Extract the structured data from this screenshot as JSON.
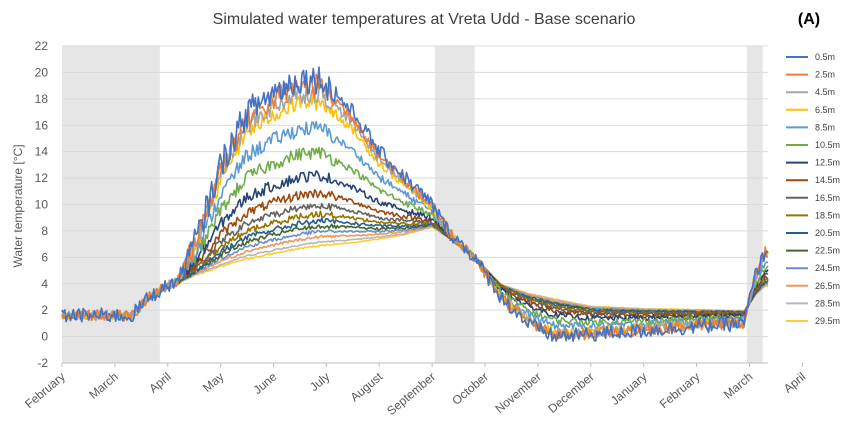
{
  "chart_data": {
    "type": "line",
    "title": "Simulated water temperatures at Vreta Udd - Base scenario",
    "panel_label": "(A)",
    "ylabel": "Water temperature [°C]",
    "xlabel": "",
    "ylim": [
      -2,
      22
    ],
    "yticks": [
      "-2",
      "0",
      "2",
      "4",
      "6",
      "8",
      "10",
      "12",
      "14",
      "16",
      "18",
      "20",
      "22"
    ],
    "x_months": [
      "February",
      "March",
      "April",
      "May",
      "June",
      "July",
      "August",
      "September",
      "October",
      "November",
      "December",
      "January",
      "February",
      "March",
      "April"
    ],
    "x_range_months": [
      0,
      13.35
    ],
    "shaded_periods": [
      [
        0,
        1.85
      ],
      [
        7.05,
        7.8
      ],
      [
        12.95,
        13.25
      ]
    ],
    "grid": "horizontal",
    "legend_position": "right",
    "series": [
      {
        "name": "0.5m",
        "color": "#4472C4",
        "offset": 0.0,
        "noise": 1.6
      },
      {
        "name": "2.5m",
        "color": "#ED7D31",
        "offset": 0.04,
        "noise": 1.3
      },
      {
        "name": "4.5m",
        "color": "#A5A5A5",
        "offset": 0.08,
        "noise": 1.1
      },
      {
        "name": "6.5m",
        "color": "#FFC000",
        "offset": 0.13,
        "noise": 0.9
      },
      {
        "name": "8.5m",
        "color": "#5B9BD5",
        "offset": 0.28,
        "noise": 0.8
      },
      {
        "name": "10.5m",
        "color": "#70AD47",
        "offset": 0.42,
        "noise": 0.7
      },
      {
        "name": "12.5m",
        "color": "#264478",
        "offset": 0.55,
        "noise": 0.6
      },
      {
        "name": "14.5m",
        "color": "#9E480E",
        "offset": 0.65,
        "noise": 0.5
      },
      {
        "name": "16.5m",
        "color": "#636363",
        "offset": 0.72,
        "noise": 0.4
      },
      {
        "name": "18.5m",
        "color": "#997300",
        "offset": 0.77,
        "noise": 0.35
      },
      {
        "name": "20.5m",
        "color": "#255E91",
        "offset": 0.81,
        "noise": 0.3
      },
      {
        "name": "22.5m",
        "color": "#43682B",
        "offset": 0.84,
        "noise": 0.25
      },
      {
        "name": "24.5m",
        "color": "#698ED0",
        "offset": 0.87,
        "noise": 0.2
      },
      {
        "name": "26.5m",
        "color": "#F1975A",
        "offset": 0.9,
        "noise": 0.15
      },
      {
        "name": "28.5m",
        "color": "#B7B7B7",
        "offset": 0.93,
        "noise": 0.1
      },
      {
        "name": "29.5m",
        "color": "#FFCD33",
        "offset": 0.95,
        "noise": 0.08
      }
    ],
    "surface_profile": [
      [
        0,
        1.6
      ],
      [
        1.0,
        1.6
      ],
      [
        1.3,
        1.5
      ],
      [
        1.6,
        2.8
      ],
      [
        1.85,
        3.5
      ],
      [
        2.2,
        4.3
      ],
      [
        2.6,
        8.0
      ],
      [
        3.0,
        13.0
      ],
      [
        3.5,
        17.0
      ],
      [
        4.0,
        18.5
      ],
      [
        4.5,
        19.5
      ],
      [
        4.9,
        19.5
      ],
      [
        5.5,
        17.0
      ],
      [
        6.0,
        14.0
      ],
      [
        6.5,
        12.0
      ],
      [
        7.0,
        10.0
      ],
      [
        7.3,
        8.0
      ],
      [
        7.8,
        6.0
      ],
      [
        8.3,
        3.0
      ],
      [
        8.8,
        1.0
      ],
      [
        9.3,
        0.0
      ],
      [
        9.8,
        0.1
      ],
      [
        10.5,
        0.3
      ],
      [
        11.5,
        0.6
      ],
      [
        12.5,
        0.9
      ],
      [
        12.9,
        1.0
      ],
      [
        13.1,
        4.5
      ],
      [
        13.3,
        6.5
      ]
    ],
    "bottom_profile": [
      [
        0,
        1.6
      ],
      [
        1.0,
        1.6
      ],
      [
        1.3,
        1.5
      ],
      [
        1.6,
        2.8
      ],
      [
        1.85,
        3.5
      ],
      [
        2.5,
        4.5
      ],
      [
        3.5,
        5.3
      ],
      [
        4.5,
        6.0
      ],
      [
        5.5,
        6.6
      ],
      [
        6.5,
        7.5
      ],
      [
        7.0,
        8.2
      ],
      [
        7.3,
        7.5
      ],
      [
        7.8,
        6.0
      ],
      [
        8.3,
        4.0
      ],
      [
        8.8,
        3.4
      ],
      [
        9.3,
        3.0
      ],
      [
        10.0,
        2.4
      ],
      [
        11.0,
        2.2
      ],
      [
        12.0,
        2.1
      ],
      [
        12.9,
        2.0
      ],
      [
        13.1,
        3.0
      ],
      [
        13.3,
        3.7
      ]
    ]
  }
}
